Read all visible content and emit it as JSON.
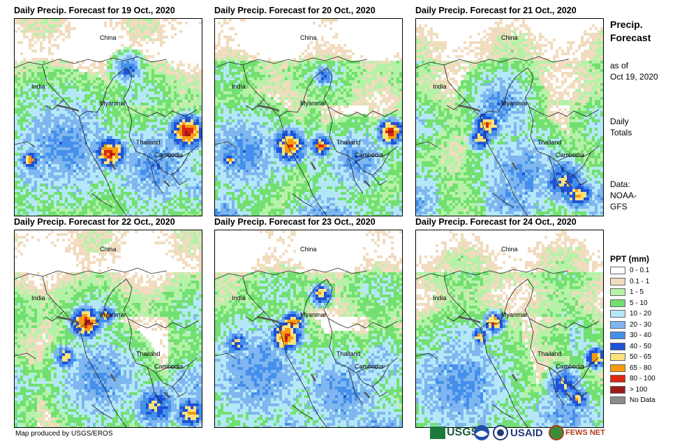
{
  "panels": [
    {
      "title": "Daily Precip. Forecast for 19 Oct., 2020",
      "seed": 19
    },
    {
      "title": "Daily Precip. Forecast for 20 Oct., 2020",
      "seed": 20
    },
    {
      "title": "Daily Precip. Forecast for 21 Oct., 2020",
      "seed": 21
    },
    {
      "title": "Daily Precip. Forecast for 22 Oct., 2020",
      "seed": 22
    },
    {
      "title": "Daily Precip. Forecast for 23 Oct., 2020",
      "seed": 23
    },
    {
      "title": "Daily Precip. Forecast for 24 Oct., 2020",
      "seed": 24
    }
  ],
  "countries": {
    "china": "China",
    "india": "India",
    "myanmar": "Myanmar",
    "thailand": "Thailand",
    "cambodia": "Cambodia"
  },
  "sidebar": {
    "title_line1": "Precip.",
    "title_line2": "Forecast",
    "asof_line1": "as of",
    "asof_line2": "Oct 19, 2020",
    "daily_line1": "Daily",
    "daily_line2": "Totals",
    "data_line1": "Data:",
    "data_line2": "NOAA-",
    "data_line3": "GFS"
  },
  "legend": {
    "title": "PPT (mm)",
    "items": [
      {
        "label": "0 - 0.1",
        "color": "#ffffff"
      },
      {
        "label": "0.1 - 1",
        "color": "#f1dcbf"
      },
      {
        "label": "1 - 5",
        "color": "#b5f2a8"
      },
      {
        "label": "5 - 10",
        "color": "#72e070"
      },
      {
        "label": "10 - 20",
        "color": "#b4e8f8"
      },
      {
        "label": "20 - 30",
        "color": "#7fb6ef"
      },
      {
        "label": "30 - 40",
        "color": "#4590ec"
      },
      {
        "label": "40 - 50",
        "color": "#1f52d8"
      },
      {
        "label": "50 - 65",
        "color": "#fae27c"
      },
      {
        "label": "65 - 80",
        "color": "#f79a10"
      },
      {
        "label": "80 - 100",
        "color": "#dc2810"
      },
      {
        "label": "> 100",
        "color": "#a01a1a"
      },
      {
        "label": "No Data",
        "color": "#8c8c8c"
      }
    ]
  },
  "footer": {
    "credit": "Map produced by USGS/EROS",
    "usgs": "USGS",
    "usaid": "USAID",
    "fewsnet": "FEWS NET"
  }
}
